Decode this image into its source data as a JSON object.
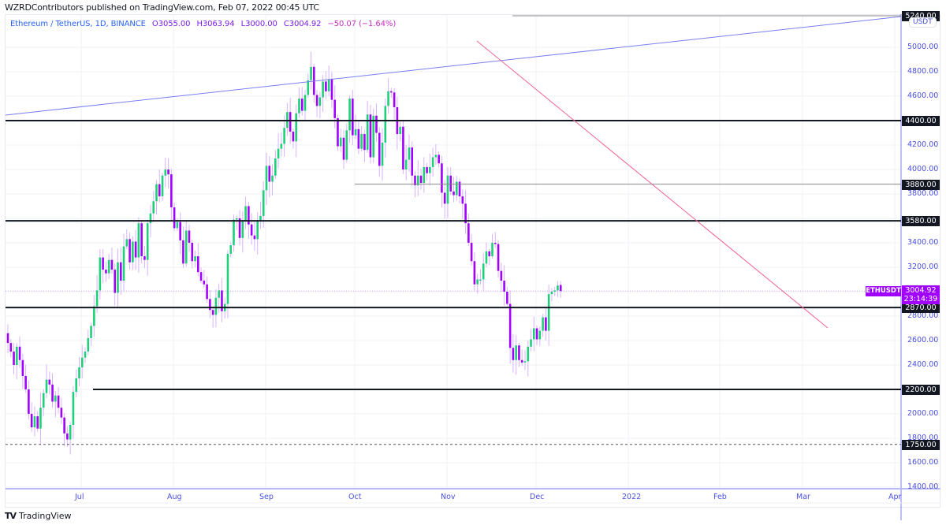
{
  "header": {
    "publisher_line": "WZRDContributors published on TradingView.com, Feb 07, 2022 00:45 UTC"
  },
  "legend": {
    "symbol": "Ethereum / TetherUS, 1D, BINANCE",
    "open": "O3055.00",
    "high": "H3063.94",
    "low": "L3000.00",
    "close": "C3004.92",
    "change": "−50.07 (−1.64%)"
  },
  "price_axis": {
    "currency": "USDT",
    "ticks": [
      "5000.00",
      "4800.00",
      "4600.00",
      "4200.00",
      "4000.00",
      "3800.00",
      "3400.00",
      "3200.00",
      "2800.00",
      "2600.00",
      "2400.00",
      "2000.00",
      "1800.00",
      "1600.00",
      "1400.00"
    ],
    "top_tag": "5240.00"
  },
  "time_axis": {
    "ticks": [
      "Jul",
      "Aug",
      "Sep",
      "Oct",
      "Nov",
      "Dec",
      "2022",
      "Feb",
      "Mar",
      "Apr"
    ]
  },
  "levels": [
    {
      "price": 4400.0,
      "label": "4400.00"
    },
    {
      "price": 3880.0,
      "label": "3880.00"
    },
    {
      "price": 3580.0,
      "label": "3580.00"
    },
    {
      "price": 2870.0,
      "label": "2870.00"
    },
    {
      "price": 2200.0,
      "label": "2200.00"
    },
    {
      "price": 1750.0,
      "label": "1750.00"
    }
  ],
  "current_price": {
    "symbol": "ETHUSDT",
    "price": "3004.92",
    "countdown": "23:14:39",
    "color": "#a000ff"
  },
  "colors": {
    "up": "#1fcf7a",
    "down": "#a000ff",
    "wick": "#d9b3ff",
    "resistance_trend": "#f06292",
    "channel_trend": "#7b7ff0",
    "level_line": "#131722"
  },
  "footer": {
    "brand": "TradingView",
    "logo_glyph": "TV"
  },
  "chart_data": {
    "type": "candlestick",
    "title": "Ethereum / TetherUS, 1D, BINANCE",
    "xlabel": "",
    "ylabel": "USDT",
    "ylim": [
      1400,
      5240
    ],
    "x_ticks": [
      "Jul",
      "Aug",
      "Sep",
      "Oct",
      "Nov",
      "Dec",
      "2022",
      "Feb",
      "Mar",
      "Apr"
    ],
    "last": {
      "open": 3055.0,
      "high": 3063.94,
      "low": 3000.0,
      "close": 3004.92,
      "change": -50.07,
      "change_pct": -1.64
    },
    "horizontal_levels": [
      4400,
      3880,
      3580,
      2870,
      2200,
      1750
    ],
    "trendlines": [
      {
        "name": "ascending channel top",
        "from": [
          "2021-06-12",
          4400
        ],
        "to": [
          "2022-04-01",
          5240
        ]
      },
      {
        "name": "descending resistance",
        "from": [
          "2021-11-04",
          5050
        ],
        "to": [
          "2022-03-10",
          2700
        ]
      }
    ],
    "closes_approx": [
      2580,
      2510,
      2400,
      2550,
      2440,
      2310,
      2200,
      2000,
      1890,
      1980,
      1880,
      2050,
      2170,
      2280,
      2240,
      2100,
      2150,
      2050,
      1970,
      1840,
      1790,
      1910,
      2180,
      2290,
      2380,
      2460,
      2510,
      2620,
      2720,
      2880,
      3010,
      3280,
      3180,
      3150,
      3260,
      3180,
      2990,
      3240,
      3090,
      3370,
      3430,
      3240,
      3410,
      3280,
      3560,
      3290,
      3260,
      3560,
      3640,
      3740,
      3880,
      3780,
      3950,
      4000,
      3960,
      3690,
      3520,
      3570,
      3420,
      3230,
      3500,
      3400,
      3250,
      3290,
      3160,
      3090,
      3060,
      2940,
      2850,
      2810,
      2950,
      3010,
      2840,
      2900,
      3310,
      3380,
      3590,
      3600,
      3440,
      3580,
      3700,
      3550,
      3460,
      3430,
      3580,
      3620,
      3830,
      4030,
      3900,
      3950,
      4090,
      4170,
      4210,
      4340,
      4470,
      4310,
      4230,
      4460,
      4580,
      4480,
      4610,
      4730,
      4840,
      4610,
      4520,
      4590,
      4720,
      4640,
      4740,
      4570,
      4420,
      4190,
      4260,
      4080,
      4320,
      4580,
      4280,
      4330,
      4170,
      4290,
      4160,
      4450,
      4100,
      4440,
      4300,
      4030,
      4220,
      4520,
      4640,
      4630,
      4510,
      4290,
      4350,
      4000,
      4080,
      4180,
      3950,
      3870,
      3950,
      3890,
      4020,
      3970,
      4020,
      4100,
      4120,
      4050,
      3810,
      3720,
      3950,
      3820,
      3790,
      3900,
      3780,
      3720,
      3560,
      3400,
      3250,
      3060,
      3100,
      3100,
      3230,
      3330,
      3290,
      3400,
      3390,
      3170,
      3090,
      3000,
      2900,
      2540,
      2440,
      2560,
      2440,
      2420,
      2430,
      2550,
      2610,
      2700,
      2610,
      2680,
      2790,
      2680,
      2980,
      3000,
      3010,
      3050,
      3005
    ]
  }
}
